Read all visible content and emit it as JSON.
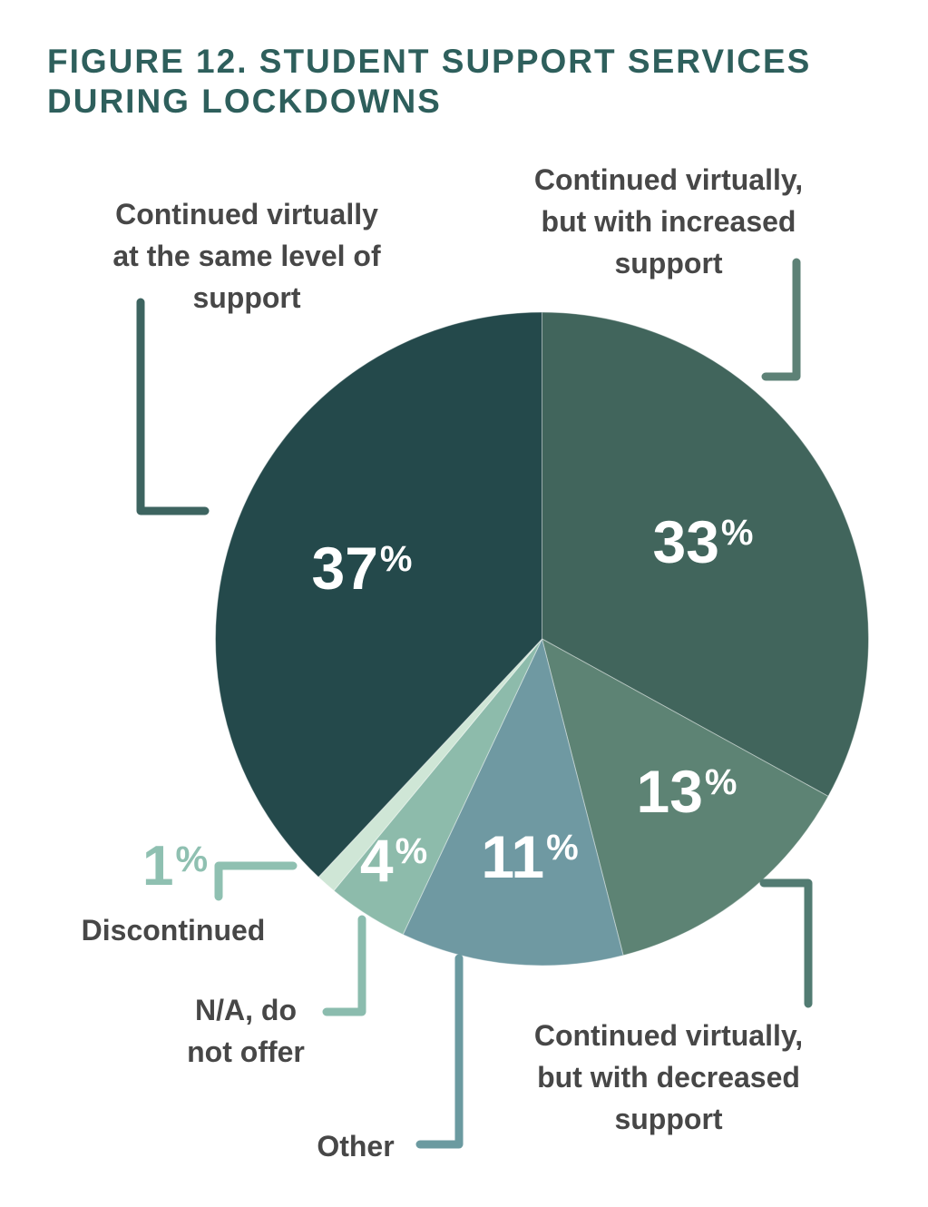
{
  "figure": {
    "title": "FIGURE 12. STUDENT SUPPORT SERVICES DURING LOCKDOWNS",
    "title_lines": [
      "FIGURE 12. STUDENT SUPPORT SERVICES",
      "DURING LOCKDOWNS"
    ],
    "title_color": "#2e5f5c",
    "label_text_color": "#474747",
    "background_color": "#ffffff"
  },
  "chart_data": {
    "type": "pie",
    "title": "FIGURE 12. STUDENT SUPPORT SERVICES DURING LOCKDOWNS",
    "unit": "%",
    "percent_sign": "%",
    "start_angle": "12 o'clock",
    "direction": "clockwise",
    "values_sum_note": 99,
    "value_text_color": "#ffffff",
    "slices": [
      {
        "id": "increased",
        "label": "Continued virtually, but with increased support",
        "lines": [
          "Continued virtually,",
          "but with increased",
          "support"
        ],
        "value": 33,
        "color": "#41655c",
        "connector_color": "#5d8176"
      },
      {
        "id": "decreased",
        "label": "Continued virtually, but with decreased support",
        "lines": [
          "Continued virtually,",
          "but with decreased",
          "support"
        ],
        "value": 13,
        "color": "#5d8374",
        "connector_color": "#527b72"
      },
      {
        "id": "other",
        "label": "Other",
        "lines": [
          "Other"
        ],
        "value": 11,
        "color": "#6f99a2",
        "connector_color": "#6b9aa0"
      },
      {
        "id": "na",
        "label": "N/A, do not offer",
        "lines": [
          "N/A, do",
          "not offer"
        ],
        "value": 4,
        "color": "#8dbbab",
        "connector_color": "#8bbcae"
      },
      {
        "id": "discontinued",
        "label": "Discontinued",
        "lines": [
          "Discontinued"
        ],
        "value": 1,
        "color": "#cfe6d6",
        "connector_color": "#8fc0b1",
        "value_text_color": "#8fc0b1"
      },
      {
        "id": "same_level",
        "label": "Continued virtually at the same level of support",
        "lines": [
          "Continued virtually",
          "at the same level of",
          "support"
        ],
        "value": 37,
        "color": "#24494b",
        "connector_color": "#3d6460"
      }
    ]
  }
}
